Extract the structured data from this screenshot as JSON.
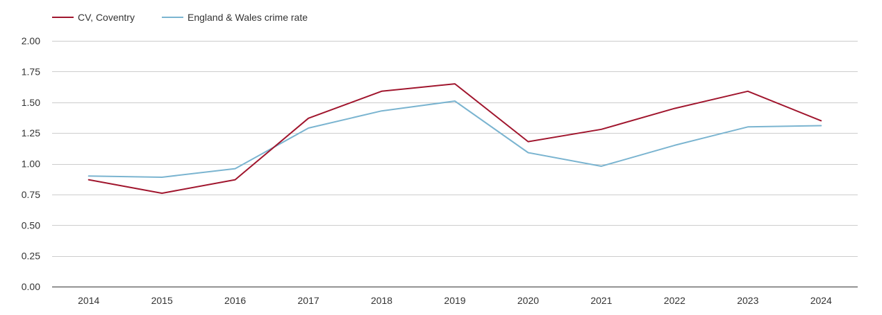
{
  "chart_data": {
    "type": "line",
    "title": "",
    "xlabel": "",
    "ylabel": "",
    "categories": [
      "2014",
      "2015",
      "2016",
      "2017",
      "2018",
      "2019",
      "2020",
      "2021",
      "2022",
      "2023",
      "2024"
    ],
    "ylim": [
      0,
      2
    ],
    "y_ticks": [
      "0.00",
      "0.25",
      "0.50",
      "0.75",
      "1.00",
      "1.25",
      "1.50",
      "1.75",
      "2.00"
    ],
    "grid": true,
    "legend_position": "top-left",
    "series": [
      {
        "name": "CV, Coventry",
        "color": "#a0152d",
        "values": [
          0.87,
          0.76,
          0.87,
          1.37,
          1.59,
          1.65,
          1.18,
          1.28,
          1.45,
          1.59,
          1.35
        ]
      },
      {
        "name": "England & Wales crime rate",
        "color": "#7ab4d0",
        "values": [
          0.9,
          0.89,
          0.96,
          1.29,
          1.43,
          1.51,
          1.09,
          0.98,
          1.15,
          1.3,
          1.31
        ]
      }
    ]
  }
}
